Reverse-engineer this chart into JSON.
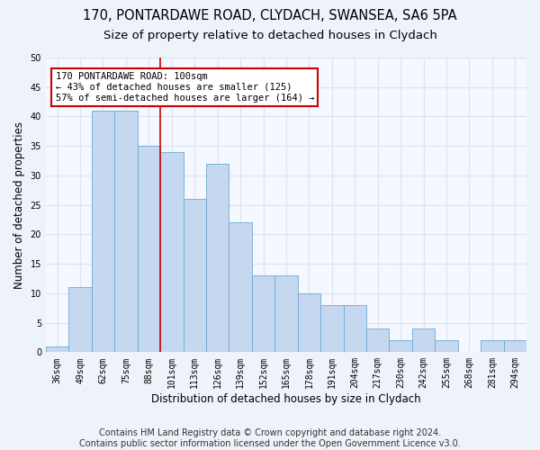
{
  "title1": "170, PONTARDAWE ROAD, CLYDACH, SWANSEA, SA6 5PA",
  "title2": "Size of property relative to detached houses in Clydach",
  "xlabel": "Distribution of detached houses by size in Clydach",
  "ylabel": "Number of detached properties",
  "categories": [
    "36sqm",
    "49sqm",
    "62sqm",
    "75sqm",
    "88sqm",
    "101sqm",
    "113sqm",
    "126sqm",
    "139sqm",
    "152sqm",
    "165sqm",
    "178sqm",
    "191sqm",
    "204sqm",
    "217sqm",
    "230sqm",
    "242sqm",
    "255sqm",
    "268sqm",
    "281sqm",
    "294sqm"
  ],
  "values": [
    1,
    11,
    41,
    41,
    35,
    34,
    26,
    32,
    22,
    13,
    13,
    10,
    8,
    8,
    4,
    2,
    4,
    2,
    0,
    2,
    2
  ],
  "bar_color": "#c5d8ef",
  "bar_edge_color": "#6aaad4",
  "vline_x": 4.5,
  "vline_color": "#cc0000",
  "annotation_text": "170 PONTARDAWE ROAD: 100sqm\n← 43% of detached houses are smaller (125)\n57% of semi-detached houses are larger (164) →",
  "annotation_box_color": "#ffffff",
  "annotation_box_edge": "#cc0000",
  "ylim": [
    0,
    50
  ],
  "yticks": [
    0,
    5,
    10,
    15,
    20,
    25,
    30,
    35,
    40,
    45,
    50
  ],
  "footer": "Contains HM Land Registry data © Crown copyright and database right 2024.\nContains public sector information licensed under the Open Government Licence v3.0.",
  "bg_color": "#eef2f9",
  "plot_bg_color": "#f5f8fe",
  "grid_color": "#dde5f5",
  "title_fontsize": 10.5,
  "subtitle_fontsize": 9.5,
  "axis_label_fontsize": 8.5,
  "tick_fontsize": 7,
  "footer_fontsize": 7,
  "ann_text_fontsize": 7.5
}
